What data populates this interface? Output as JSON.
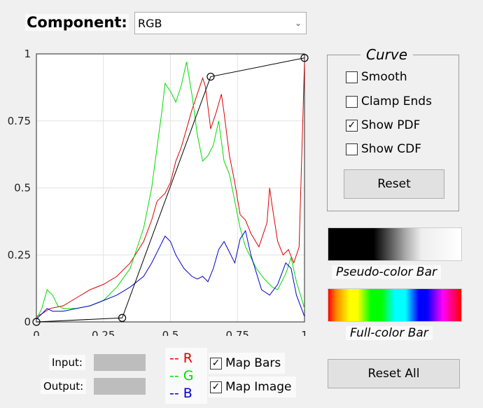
{
  "component": {
    "label": "Component:",
    "selected": "RGB"
  },
  "plot": {
    "x_ticks": [
      "0",
      "0.25",
      "0.5",
      "0.75",
      "1"
    ],
    "y_ticks": [
      "0",
      "0.25",
      "0.5",
      "0.75",
      "1"
    ],
    "curve_points": [
      [
        0,
        0
      ],
      [
        0.32,
        0.015
      ],
      [
        0.65,
        0.915
      ],
      [
        1.0,
        0.985
      ]
    ],
    "colors": {
      "r": "#dd0000",
      "g": "#00dd00",
      "b": "#0000cc",
      "curve": "#000000"
    }
  },
  "chart_data": {
    "type": "line",
    "xlim": [
      0,
      1
    ],
    "ylim": [
      0,
      1
    ],
    "grid": true,
    "series": [
      {
        "name": "R",
        "color": "#dd0000",
        "x": [
          0,
          0.02,
          0.05,
          0.1,
          0.15,
          0.2,
          0.25,
          0.3,
          0.35,
          0.4,
          0.43,
          0.45,
          0.48,
          0.5,
          0.52,
          0.54,
          0.56,
          0.58,
          0.6,
          0.62,
          0.63,
          0.65,
          0.67,
          0.69,
          0.7,
          0.72,
          0.74,
          0.76,
          0.78,
          0.8,
          0.83,
          0.86,
          0.87,
          0.88,
          0.9,
          0.92,
          0.94,
          0.96,
          0.98,
          1
        ],
        "y": [
          0.02,
          0.03,
          0.05,
          0.06,
          0.09,
          0.12,
          0.14,
          0.17,
          0.22,
          0.3,
          0.38,
          0.45,
          0.48,
          0.52,
          0.6,
          0.65,
          0.72,
          0.79,
          0.85,
          0.91,
          0.88,
          0.72,
          0.78,
          0.85,
          0.78,
          0.62,
          0.52,
          0.4,
          0.38,
          0.33,
          0.28,
          0.37,
          0.5,
          0.43,
          0.3,
          0.25,
          0.27,
          0.22,
          0.28,
          0.97
        ]
      },
      {
        "name": "G",
        "color": "#00dd00",
        "x": [
          0,
          0.02,
          0.04,
          0.06,
          0.08,
          0.1,
          0.15,
          0.2,
          0.25,
          0.3,
          0.35,
          0.4,
          0.43,
          0.45,
          0.47,
          0.48,
          0.5,
          0.52,
          0.54,
          0.56,
          0.58,
          0.6,
          0.62,
          0.64,
          0.66,
          0.68,
          0.7,
          0.72,
          0.74,
          0.76,
          0.78,
          0.82,
          0.85,
          0.88,
          0.9,
          0.93,
          0.95,
          0.97,
          1
        ],
        "y": [
          0.01,
          0.05,
          0.12,
          0.1,
          0.06,
          0.05,
          0.05,
          0.06,
          0.08,
          0.13,
          0.2,
          0.35,
          0.5,
          0.65,
          0.8,
          0.89,
          0.86,
          0.82,
          0.88,
          0.97,
          0.85,
          0.7,
          0.6,
          0.62,
          0.66,
          0.75,
          0.6,
          0.55,
          0.45,
          0.35,
          0.28,
          0.2,
          0.16,
          0.13,
          0.12,
          0.18,
          0.24,
          0.15,
          0.05
        ]
      },
      {
        "name": "B",
        "color": "#0000cc",
        "x": [
          0,
          0.02,
          0.04,
          0.06,
          0.1,
          0.15,
          0.2,
          0.25,
          0.3,
          0.35,
          0.4,
          0.43,
          0.46,
          0.48,
          0.5,
          0.52,
          0.55,
          0.58,
          0.6,
          0.62,
          0.64,
          0.66,
          0.68,
          0.7,
          0.72,
          0.74,
          0.76,
          0.78,
          0.8,
          0.84,
          0.87,
          0.9,
          0.93,
          0.95,
          0.97,
          1
        ],
        "y": [
          0.01,
          0.03,
          0.05,
          0.04,
          0.04,
          0.05,
          0.06,
          0.08,
          0.1,
          0.13,
          0.17,
          0.22,
          0.28,
          0.32,
          0.3,
          0.25,
          0.2,
          0.17,
          0.16,
          0.17,
          0.15,
          0.2,
          0.27,
          0.3,
          0.26,
          0.22,
          0.31,
          0.34,
          0.25,
          0.12,
          0.1,
          0.14,
          0.22,
          0.2,
          0.1,
          0.02
        ]
      }
    ]
  },
  "curve_panel": {
    "title": "Curve",
    "options": [
      {
        "label": "Smooth",
        "checked": false
      },
      {
        "label": "Clamp Ends",
        "checked": false
      },
      {
        "label": "Show PDF",
        "checked": true
      },
      {
        "label": "Show CDF",
        "checked": false
      }
    ],
    "reset_label": "Reset"
  },
  "bars": {
    "pseudo_label": "Pseudo-color Bar",
    "full_label": "Full-color Bar"
  },
  "io": {
    "input_label": "Input:",
    "output_label": "Output:"
  },
  "legend": {
    "r": "-- R",
    "g": "-- G",
    "b": "-- B"
  },
  "maps": {
    "bars_label": "Map Bars",
    "bars_checked": true,
    "image_label": "Map Image",
    "image_checked": true
  },
  "reset_all_label": "Reset All"
}
